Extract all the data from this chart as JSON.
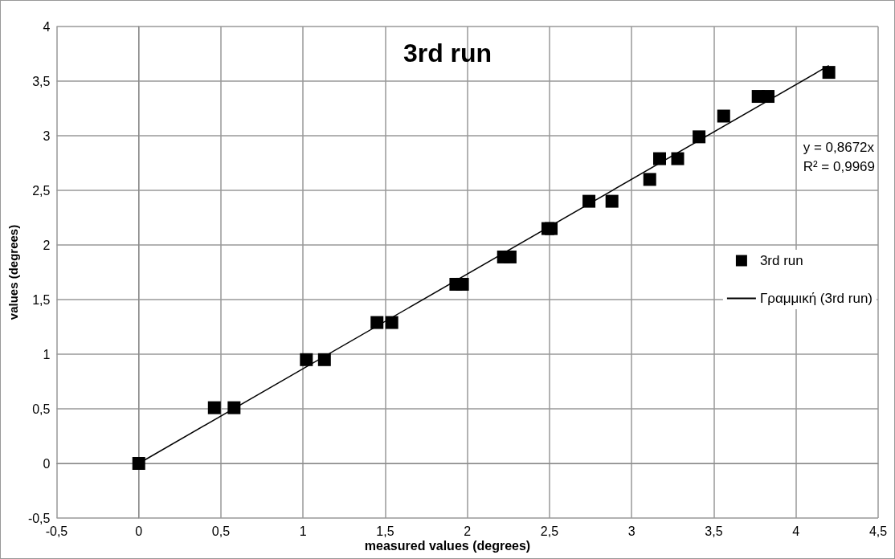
{
  "chart_data": {
    "type": "scatter",
    "title": "3rd run",
    "xlabel": "measured values (degrees)",
    "ylabel": "values (degrees)",
    "series": [
      {
        "name": "3rd run",
        "color": "#000000",
        "marker": "square",
        "x": [
          0,
          0.46,
          0.58,
          1.02,
          1.13,
          1.45,
          1.54,
          1.93,
          1.97,
          2.22,
          2.26,
          2.49,
          2.51,
          2.74,
          2.88,
          3.11,
          3.17,
          3.28,
          3.41,
          3.56,
          3.77,
          3.83,
          4.2
        ],
        "values": [
          0,
          0.51,
          0.51,
          0.95,
          0.95,
          1.29,
          1.29,
          1.64,
          1.64,
          1.89,
          1.89,
          2.15,
          2.15,
          2.4,
          2.4,
          2.6,
          2.79,
          2.79,
          2.99,
          3.18,
          3.36,
          3.36,
          3.58
        ]
      },
      {
        "name": "Γραμμική (3rd run)",
        "type": "line",
        "color": "#000000",
        "marker": "none",
        "line_style": "solid",
        "x": [
          0,
          4.2
        ],
        "values": [
          0,
          3.642
        ]
      }
    ],
    "annotations": [
      "y = 0,8672x",
      "R² = 0,9969"
    ],
    "xlim": [
      -0.5,
      4.5
    ],
    "xticks": [
      {
        "value": -0.5,
        "label": "-0,5"
      },
      0,
      {
        "value": 0.5,
        "label": "0,5"
      },
      1,
      {
        "value": 1.5,
        "label": "1,5"
      },
      2,
      {
        "value": 2.5,
        "label": "2,5"
      },
      3,
      {
        "value": 3.5,
        "label": "3,5"
      },
      4,
      {
        "value": 4.5,
        "label": "4,5"
      }
    ],
    "ylim": [
      -0.5,
      4
    ],
    "yticks": [
      {
        "value": -0.5,
        "label": "-0,5"
      },
      0,
      {
        "value": 0.5,
        "label": "0,5"
      },
      1,
      {
        "value": 1.5,
        "label": "1,5"
      },
      2,
      {
        "value": 2.5,
        "label": "2,5"
      },
      3,
      {
        "value": 3.5,
        "label": "3,5"
      },
      4
    ],
    "grid": true,
    "legend": "right"
  }
}
